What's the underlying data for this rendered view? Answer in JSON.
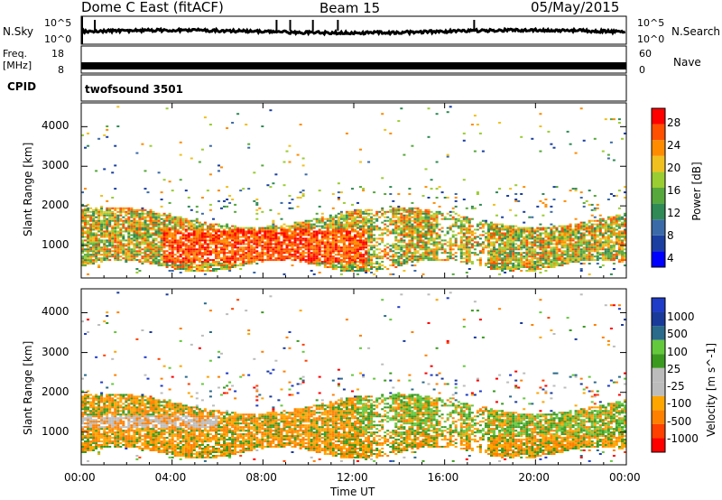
{
  "header": {
    "title": "Dome C East (fitACF)",
    "beam": "Beam 15",
    "date": "05/May/2015"
  },
  "panels": {
    "nsky": {
      "left_label": "N.Sky",
      "right_label": "N.Search",
      "left_ticks": [
        "10^5",
        "10^0"
      ],
      "right_ticks": [
        "10^5",
        "10^0"
      ]
    },
    "freq": {
      "left_label_1": "Freq.",
      "left_label_2": "[MHz]",
      "right_label": "Nave",
      "left_ticks": [
        "18",
        "8"
      ],
      "right_ticks": [
        "60",
        "0"
      ]
    },
    "cpid": {
      "label": "CPID",
      "value": "twofsound 3501"
    }
  },
  "colors": {
    "power_scale": [
      "#0000ff",
      "#1a3fa0",
      "#3a6aa8",
      "#2f8a55",
      "#56a83c",
      "#9acd32",
      "#f0c020",
      "#ff8c00",
      "#ff5000",
      "#ff0000"
    ],
    "velocity_scale": [
      "#ff0000",
      "#ff4000",
      "#ff8000",
      "#ffa500",
      "#bcbcbc",
      "#bcbcbc",
      "#3a9a20",
      "#64c83c",
      "#2a6a8a",
      "#1a3a9a",
      "#1e3cc8"
    ]
  },
  "chart_data": [
    {
      "type": "heatmap",
      "name": "power-panel",
      "xlabel": "",
      "ylabel": "Slant Range [km]",
      "x_ticks": [
        "00:00",
        "04:00",
        "08:00",
        "12:00",
        "16:00",
        "20:00",
        "00:00"
      ],
      "y_ticks": [
        "1000",
        "2000",
        "3000",
        "4000"
      ],
      "xlim_hours": [
        0,
        24
      ],
      "ylim_km": [
        180,
        4600
      ],
      "colorbar": {
        "label": "Power [dB]",
        "tick_labels": [
          "28",
          "24",
          "20",
          "16",
          "12",
          "8",
          "4"
        ],
        "range": [
          0,
          32
        ]
      },
      "note_data": "Dense backscatter between ~500 and ~1800 km all day; strongest (28+ dB) from ~04:00 to ~12:00 around 800-1300 km; gap ~13:00-14:00 and ~17:00-18:00 with partial coverage; sparse points up to ~4400 km."
    },
    {
      "type": "heatmap",
      "name": "velocity-panel",
      "xlabel": "Time UT",
      "ylabel": "Slant Range [km]",
      "x_ticks": [
        "00:00",
        "04:00",
        "08:00",
        "12:00",
        "16:00",
        "20:00",
        "00:00"
      ],
      "y_ticks": [
        "1000",
        "2000",
        "3000",
        "4000"
      ],
      "xlim_hours": [
        0,
        24
      ],
      "ylim_km": [
        180,
        4600
      ],
      "colorbar": {
        "label": "Velocity [m s^-1]",
        "tick_labels": [
          "1000",
          "500",
          "100",
          "25",
          "-25",
          "-100",
          "-500",
          "-1000"
        ]
      },
      "note_data": "Predominantly orange (-100 to -500 m/s) across 500-1800 km; green/positive velocities after ~12:00 from 1000-1800 km; grey ground-scatter band ~1100-1400 km early hours."
    }
  ]
}
